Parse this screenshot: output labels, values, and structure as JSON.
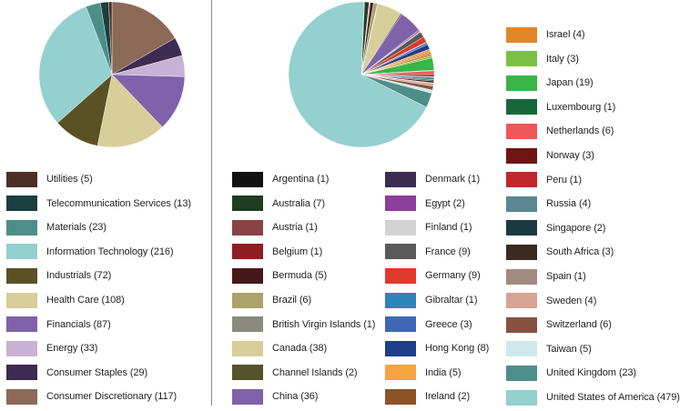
{
  "chart_data": [
    {
      "type": "pie",
      "slices": [
        {
          "name": "Consumer Discretionary",
          "value": 117,
          "color": "#8b6a57"
        },
        {
          "name": "Consumer Staples",
          "value": 29,
          "color": "#3d2b52"
        },
        {
          "name": "Energy",
          "value": 33,
          "color": "#c7b1d6"
        },
        {
          "name": "Financials",
          "value": 87,
          "color": "#7f62a9"
        },
        {
          "name": "Health Care",
          "value": 108,
          "color": "#d8ce9a"
        },
        {
          "name": "Industrials",
          "value": 72,
          "color": "#5a5224"
        },
        {
          "name": "Information Technology",
          "value": 216,
          "color": "#93d0cf"
        },
        {
          "name": "Materials",
          "value": 23,
          "color": "#4e8e88"
        },
        {
          "name": "Telecommunication Services",
          "value": 13,
          "color": "#1b3f3f"
        },
        {
          "name": "Utilities",
          "value": 5,
          "color": "#4b2f24"
        }
      ],
      "legend": [
        {
          "label": "Utilities (5)",
          "color": "#4b2f24"
        },
        {
          "label": "Telecommunication Services (13)",
          "color": "#1b3f3f"
        },
        {
          "label": "Materials (23)",
          "color": "#4e8e88"
        },
        {
          "label": "Information Technology (216)",
          "color": "#93d0cf"
        },
        {
          "label": "Industrials (72)",
          "color": "#5a5224"
        },
        {
          "label": "Health Care (108)",
          "color": "#d8ce9a"
        },
        {
          "label": "Financials (87)",
          "color": "#7f62a9"
        },
        {
          "label": "Energy (33)",
          "color": "#c7b1d6"
        },
        {
          "label": "Consumer Staples (29)",
          "color": "#3d2b52"
        },
        {
          "label": "Consumer Discretionary (117)",
          "color": "#8b6a57"
        }
      ]
    },
    {
      "type": "pie",
      "slices": [
        {
          "name": "Argentina",
          "value": 1,
          "color": "#111111"
        },
        {
          "name": "Australia",
          "value": 7,
          "color": "#1e3d22"
        },
        {
          "name": "Austria",
          "value": 1,
          "color": "#8b4244"
        },
        {
          "name": "Belgium",
          "value": 1,
          "color": "#8e1e22"
        },
        {
          "name": "Bermuda",
          "value": 5,
          "color": "#45191a"
        },
        {
          "name": "Brazil",
          "value": 6,
          "color": "#a8a46a"
        },
        {
          "name": "British Virgin Islands",
          "value": 1,
          "color": "#8a8a7e"
        },
        {
          "name": "Canada",
          "value": 38,
          "color": "#d8ce9a"
        },
        {
          "name": "Channel Islands",
          "value": 2,
          "color": "#55532a"
        },
        {
          "name": "China",
          "value": 36,
          "color": "#7f62a9"
        },
        {
          "name": "Denmark",
          "value": 1,
          "color": "#3d2b52"
        },
        {
          "name": "Egypt",
          "value": 2,
          "color": "#8b3f98"
        },
        {
          "name": "Finland",
          "value": 1,
          "color": "#d3d3d3"
        },
        {
          "name": "France",
          "value": 9,
          "color": "#5a5a5a"
        },
        {
          "name": "Germany",
          "value": 9,
          "color": "#e03a2a"
        },
        {
          "name": "Gibraltar",
          "value": 1,
          "color": "#2e86b8"
        },
        {
          "name": "Greece",
          "value": 3,
          "color": "#3f68b4"
        },
        {
          "name": "Hong Kong",
          "value": 8,
          "color": "#203f8a"
        },
        {
          "name": "India",
          "value": 5,
          "color": "#f4a443"
        },
        {
          "name": "Ireland",
          "value": 2,
          "color": "#8e5324"
        },
        {
          "name": "Israel",
          "value": 4,
          "color": "#e0862a"
        },
        {
          "name": "Italy",
          "value": 3,
          "color": "#7ac143"
        },
        {
          "name": "Japan",
          "value": 19,
          "color": "#38b449"
        },
        {
          "name": "Luxembourg",
          "value": 1,
          "color": "#17673a"
        },
        {
          "name": "Netherlands",
          "value": 6,
          "color": "#ef5758"
        },
        {
          "name": "Norway",
          "value": 3,
          "color": "#6f1414"
        },
        {
          "name": "Peru",
          "value": 1,
          "color": "#c1272d"
        },
        {
          "name": "Russia",
          "value": 4,
          "color": "#5a8792"
        },
        {
          "name": "Singapore",
          "value": 2,
          "color": "#1c3a42"
        },
        {
          "name": "South Africa",
          "value": 3,
          "color": "#3b2a20"
        },
        {
          "name": "Spain",
          "value": 1,
          "color": "#a48981"
        },
        {
          "name": "Sweden",
          "value": 4,
          "color": "#d6a493"
        },
        {
          "name": "Switzerland",
          "value": 6,
          "color": "#87513f"
        },
        {
          "name": "Taiwan",
          "value": 5,
          "color": "#cfe8ec"
        },
        {
          "name": "United Kingdom",
          "value": 23,
          "color": "#4e8e88"
        },
        {
          "name": "United States of America",
          "value": 479,
          "color": "#93d0cf"
        }
      ],
      "legend": [
        {
          "label": "Argentina (1)",
          "color": "#111111"
        },
        {
          "label": "Australia (7)",
          "color": "#1e3d22"
        },
        {
          "label": "Austria (1)",
          "color": "#8b4244"
        },
        {
          "label": "Belgium (1)",
          "color": "#8e1e22"
        },
        {
          "label": "Bermuda (5)",
          "color": "#45191a"
        },
        {
          "label": "Brazil (6)",
          "color": "#a8a46a"
        },
        {
          "label": "British Virgin Islands (1)",
          "color": "#8a8a7e"
        },
        {
          "label": "Canada (38)",
          "color": "#d8ce9a"
        },
        {
          "label": "Channel Islands (2)",
          "color": "#55532a"
        },
        {
          "label": "China (36)",
          "color": "#7f62a9"
        },
        {
          "label": "Denmark (1)",
          "color": "#3d2b52"
        },
        {
          "label": "Egypt (2)",
          "color": "#8b3f98"
        },
        {
          "label": "Finland (1)",
          "color": "#d3d3d3"
        },
        {
          "label": "France (9)",
          "color": "#5a5a5a"
        },
        {
          "label": "Germany (9)",
          "color": "#e03a2a"
        },
        {
          "label": "Gibraltar (1)",
          "color": "#2e86b8"
        },
        {
          "label": "Greece (3)",
          "color": "#3f68b4"
        },
        {
          "label": "Hong Kong (8)",
          "color": "#203f8a"
        },
        {
          "label": "India (5)",
          "color": "#f4a443"
        },
        {
          "label": "Ireland (2)",
          "color": "#8e5324"
        },
        {
          "label": "Israel (4)",
          "color": "#e0862a"
        },
        {
          "label": "Italy (3)",
          "color": "#7ac143"
        },
        {
          "label": "Japan (19)",
          "color": "#38b449"
        },
        {
          "label": "Luxembourg (1)",
          "color": "#17673a"
        },
        {
          "label": "Netherlands (6)",
          "color": "#ef5758"
        },
        {
          "label": "Norway (3)",
          "color": "#6f1414"
        },
        {
          "label": "Peru (1)",
          "color": "#c1272d"
        },
        {
          "label": "Russia (4)",
          "color": "#5a8792"
        },
        {
          "label": "Singapore (2)",
          "color": "#1c3a42"
        },
        {
          "label": "South Africa (3)",
          "color": "#3b2a20"
        },
        {
          "label": "Spain (1)",
          "color": "#a48981"
        },
        {
          "label": "Sweden (4)",
          "color": "#d6a493"
        },
        {
          "label": "Switzerland (6)",
          "color": "#87513f"
        },
        {
          "label": "Taiwan (5)",
          "color": "#cfe8ec"
        },
        {
          "label": "United Kingdom (23)",
          "color": "#4e8e88"
        },
        {
          "label": "United States of America (479)",
          "color": "#93d0cf"
        }
      ]
    }
  ]
}
